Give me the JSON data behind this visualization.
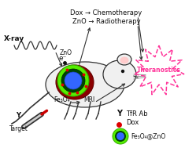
{
  "bg_color": "#ffffff",
  "xray_label": "X-ray",
  "dox_line": "Dox → Chemotherapy",
  "zno_line": "ZnO → Radiotherapy",
  "theranostics_text": "Theranostics",
  "eminus_text": "e⁻",
  "target_text": "Target",
  "fe3o4_text": "Fe₃O₄",
  "mri_text": "MRI",
  "legend_y_label": "Y",
  "legend_tfr": "TfR Ab",
  "legend_dox": "Dox",
  "legend_np": "Fe₃O₄@ZnO",
  "np_green_outer": "#55ee00",
  "np_green_dark": "#004400",
  "np_blue": "#3366ff",
  "red_dot": "#dd0000",
  "theranostics_pink": "#ff3399",
  "dark_gray": "#333333",
  "med_gray": "#888888",
  "mouse_fill": "#f0f0f0",
  "tumor_fill": "#8B0000",
  "text_color": "#111111"
}
